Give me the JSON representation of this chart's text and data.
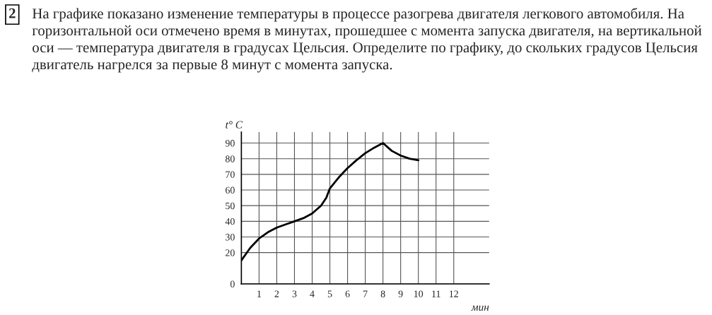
{
  "chart_data": {
    "type": "line",
    "title": "На графике показано изменение температуры в процессе разогрева двигателя легкового автомобиля. На горизонтальной оси отмечено время в минутах, прошедшее с момента запуска двигателя, на вертикальной оси — температура двигателя в градусах Цельсия. Определите по графику, до скольких градусов Цельсия двигатель нагрелся за первые 8 минут с момента запуска.",
    "annotations": [
      "2"
    ],
    "xlabel": "мин",
    "ylabel": "t° C",
    "xlim": [
      0,
      14
    ],
    "ylim": [
      0,
      97
    ],
    "xticks": [
      1,
      2,
      3,
      4,
      5,
      6,
      7,
      8,
      9,
      10,
      11,
      12
    ],
    "yticks": [
      0,
      20,
      30,
      40,
      50,
      60,
      70,
      80,
      90
    ],
    "grid": true,
    "series": [
      {
        "color": "#000000",
        "x": [
          0,
          0.5,
          1,
          1.5,
          2,
          2.5,
          3,
          3.5,
          4,
          4.5,
          4.8,
          5,
          5.5,
          6,
          6.5,
          7,
          7.5,
          8,
          8.5,
          9,
          9.5,
          10
        ],
        "values": [
          15,
          23,
          29,
          33,
          36,
          38,
          40,
          42,
          45,
          50,
          55,
          61,
          68,
          74,
          79,
          83.5,
          87,
          90,
          85,
          82,
          80,
          79
        ]
      }
    ]
  }
}
